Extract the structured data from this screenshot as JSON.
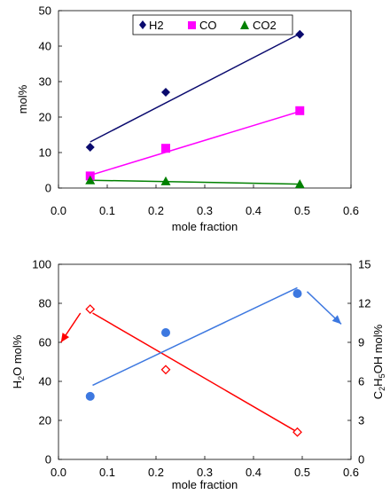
{
  "chart_data": [
    {
      "type": "scatter",
      "title": "",
      "xlabel": "mole fraction",
      "ylabel": "mol%",
      "xlim": [
        0.0,
        0.6
      ],
      "ylim": [
        0,
        50
      ],
      "xticks": [
        "0.0",
        "0.1",
        "0.2",
        "0.3",
        "0.4",
        "0.5",
        "0.6"
      ],
      "yticks": [
        "0",
        "10",
        "20",
        "30",
        "40",
        "50"
      ],
      "grid": false,
      "legend": "top-center",
      "series": [
        {
          "name": "H2",
          "marker": "diamond",
          "color": "#0a0a6e",
          "x": [
            0.065,
            0.22,
            0.495
          ],
          "y": [
            11.5,
            27.0,
            43.3
          ],
          "fit": {
            "x": [
              0.065,
              0.495
            ],
            "y": [
              13.0,
              43.5
            ]
          }
        },
        {
          "name": "CO",
          "marker": "square",
          "color": "#ff00ff",
          "x": [
            0.065,
            0.22,
            0.495
          ],
          "y": [
            3.4,
            11.2,
            21.8
          ],
          "fit": {
            "x": [
              0.065,
              0.495
            ],
            "y": [
              3.6,
              21.6
            ]
          }
        },
        {
          "name": "CO2",
          "marker": "triangle",
          "color": "#008000",
          "x": [
            0.065,
            0.22,
            0.495
          ],
          "y": [
            2.2,
            1.9,
            1.1
          ],
          "fit": {
            "x": [
              0.065,
              0.495
            ],
            "y": [
              2.2,
              1.1
            ]
          }
        }
      ]
    },
    {
      "type": "scatter",
      "title": "",
      "xlabel": "mole fraction",
      "ylabel_left": {
        "pre": "H",
        "sub": "2",
        "post": "O mol%"
      },
      "ylabel_right": {
        "pre": "C",
        "sub1": "2",
        "mid": "H",
        "sub2": "5",
        "post": "OH mol%"
      },
      "xlim": [
        0.0,
        0.6
      ],
      "ylim_left": [
        0,
        100
      ],
      "ylim_right": [
        0,
        15
      ],
      "xticks": [
        "0.0",
        "0.1",
        "0.2",
        "0.3",
        "0.4",
        "0.5",
        "0.6"
      ],
      "yticks_left": [
        "0",
        "20",
        "40",
        "60",
        "80",
        "100"
      ],
      "yticks_right": [
        "0",
        "3",
        "6",
        "9",
        "12",
        "15"
      ],
      "grid": false,
      "series": [
        {
          "axis": "left",
          "marker": "open-diamond",
          "color": "#ff0000",
          "x": [
            0.065,
            0.22,
            0.49
          ],
          "y": [
            77,
            46,
            14
          ],
          "fit": {
            "x": [
              0.07,
              0.49
            ],
            "y": [
              75,
              14
            ]
          },
          "arrow": {
            "from": [
              0.045,
              75
            ],
            "to": [
              0.005,
              60
            ]
          }
        },
        {
          "axis": "right",
          "marker": "circle",
          "color": "#3d78e0",
          "x": [
            0.065,
            0.22,
            0.49
          ],
          "y": [
            4.85,
            9.75,
            12.75
          ],
          "fit": {
            "x": [
              0.07,
              0.49
            ],
            "y": [
              5.7,
              13.2
            ]
          },
          "arrow": {
            "from": [
              0.51,
              12.9
            ],
            "to": [
              0.58,
              10.4
            ]
          }
        }
      ]
    }
  ]
}
